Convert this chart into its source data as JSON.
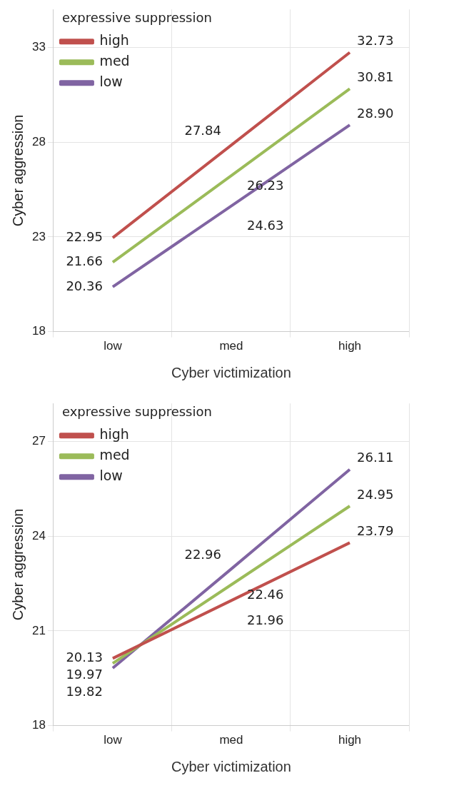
{
  "chart_data": [
    {
      "type": "line",
      "legend_title": "expressive suppression",
      "xlabel": "Cyber victimization",
      "ylabel": "Cyber aggression",
      "categories": [
        "low",
        "med",
        "high"
      ],
      "series": [
        {
          "name": "high",
          "color": "#c0504d",
          "values": [
            22.95,
            27.84,
            32.73
          ],
          "value_labels": [
            "22.95",
            "27.84",
            "32.73"
          ]
        },
        {
          "name": "med",
          "color": "#9bbb59",
          "values": [
            21.66,
            26.23,
            30.81
          ],
          "value_labels": [
            "21.66",
            "26.23",
            "30.81"
          ]
        },
        {
          "name": "low",
          "color": "#8064a2",
          "values": [
            20.36,
            24.63,
            28.9
          ],
          "value_labels": [
            "20.36",
            "24.63",
            "28.90"
          ]
        }
      ],
      "ylim": [
        18,
        35
      ],
      "yticks": [
        18,
        23,
        28,
        33
      ],
      "grid": true,
      "legend": "top left",
      "marker": "none",
      "line_style": "solid"
    },
    {
      "type": "line",
      "legend_title": "expressive suppression",
      "xlabel": "Cyber victimization",
      "ylabel": "Cyber aggression",
      "categories": [
        "low",
        "med",
        "high"
      ],
      "series": [
        {
          "name": "high",
          "color": "#c0504d",
          "values": [
            20.13,
            21.96,
            23.79
          ],
          "value_labels": [
            "20.13",
            "21.96",
            "23.79"
          ]
        },
        {
          "name": "med",
          "color": "#9bbb59",
          "values": [
            19.97,
            22.46,
            24.95
          ],
          "value_labels": [
            "19.97",
            "22.46",
            "24.95"
          ]
        },
        {
          "name": "low",
          "color": "#8064a2",
          "values": [
            19.82,
            22.96,
            26.11
          ],
          "value_labels": [
            "19.82",
            "22.96",
            "26.11"
          ]
        }
      ],
      "ylim": [
        18,
        28.2
      ],
      "yticks": [
        18,
        21,
        24,
        27
      ],
      "grid": true,
      "legend": "top left",
      "marker": "none",
      "line_style": "solid"
    }
  ]
}
